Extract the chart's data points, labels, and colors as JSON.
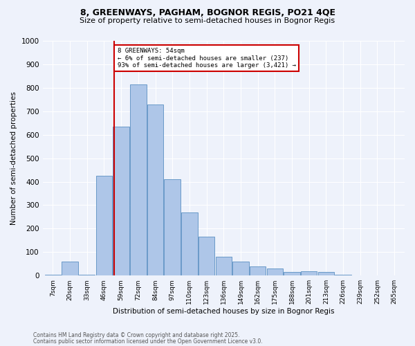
{
  "title1": "8, GREENWAYS, PAGHAM, BOGNOR REGIS, PO21 4QE",
  "title2": "Size of property relative to semi-detached houses in Bognor Regis",
  "xlabel": "Distribution of semi-detached houses by size in Bognor Regis",
  "ylabel": "Number of semi-detached properties",
  "bin_labels": [
    "7sqm",
    "20sqm",
    "33sqm",
    "46sqm",
    "59sqm",
    "72sqm",
    "84sqm",
    "97sqm",
    "110sqm",
    "123sqm",
    "136sqm",
    "149sqm",
    "162sqm",
    "175sqm",
    "188sqm",
    "201sqm",
    "213sqm",
    "226sqm",
    "239sqm",
    "252sqm",
    "265sqm"
  ],
  "bar_values": [
    5,
    60,
    5,
    425,
    635,
    815,
    730,
    410,
    270,
    165,
    80,
    60,
    40,
    30,
    15,
    18,
    15,
    5,
    2,
    2,
    2
  ],
  "bar_color": "#aec6e8",
  "bar_edge_color": "#5a8fc2",
  "annotation_title": "8 GREENWAYS: 54sqm",
  "annotation_line1": "← 6% of semi-detached houses are smaller (237)",
  "annotation_line2": "93% of semi-detached houses are larger (3,421) →",
  "annotation_box_color": "#ffffff",
  "annotation_box_edge": "#cc0000",
  "vline_color": "#cc0000",
  "ylim": [
    0,
    1000
  ],
  "yticks": [
    0,
    100,
    200,
    300,
    400,
    500,
    600,
    700,
    800,
    900,
    1000
  ],
  "bg_color": "#eef2fb",
  "footer1": "Contains HM Land Registry data © Crown copyright and database right 2025.",
  "footer2": "Contains public sector information licensed under the Open Government Licence v3.0."
}
